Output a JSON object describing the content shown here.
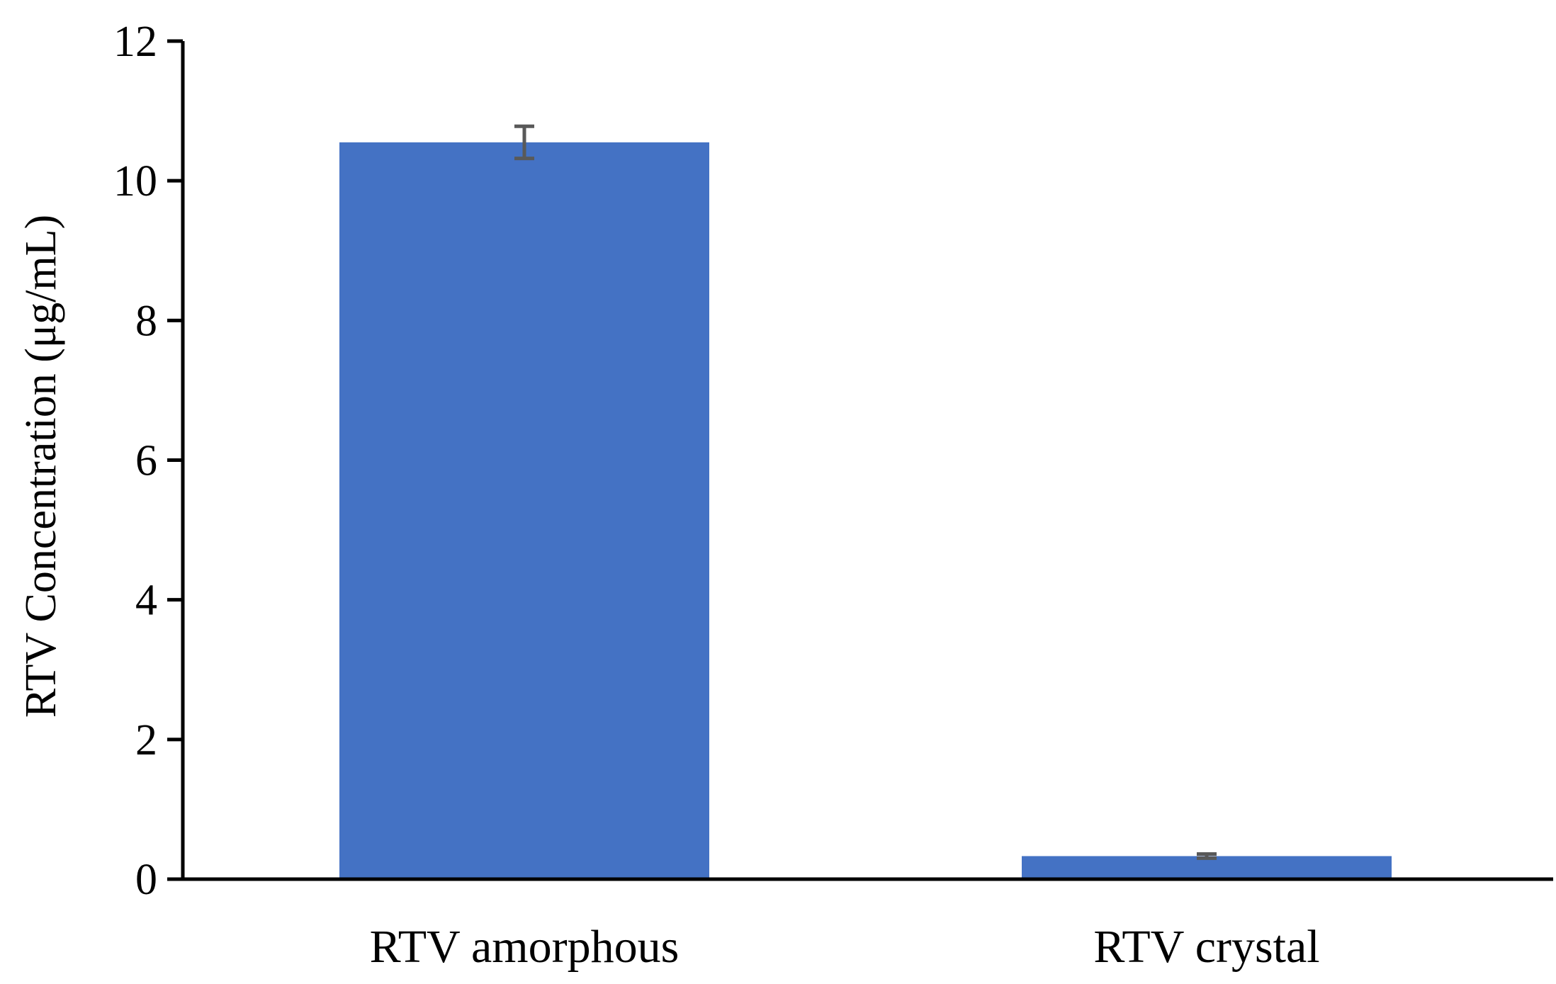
{
  "chart_data": {
    "type": "bar",
    "title": "",
    "xlabel": "",
    "ylabel": "RTV Concentration  (μg/mL)",
    "categories": [
      "RTV amorphous",
      "RTV crystal"
    ],
    "values": [
      10.55,
      0.33
    ],
    "error": [
      0.23,
      0.03
    ],
    "ylim": [
      0,
      12
    ],
    "yticks": [
      0,
      2,
      4,
      6,
      8,
      10,
      12
    ],
    "grid": false,
    "legend": "none",
    "colors": {
      "bar": "#4472C4",
      "error_bar": "#595959",
      "axis": "#000000"
    }
  }
}
